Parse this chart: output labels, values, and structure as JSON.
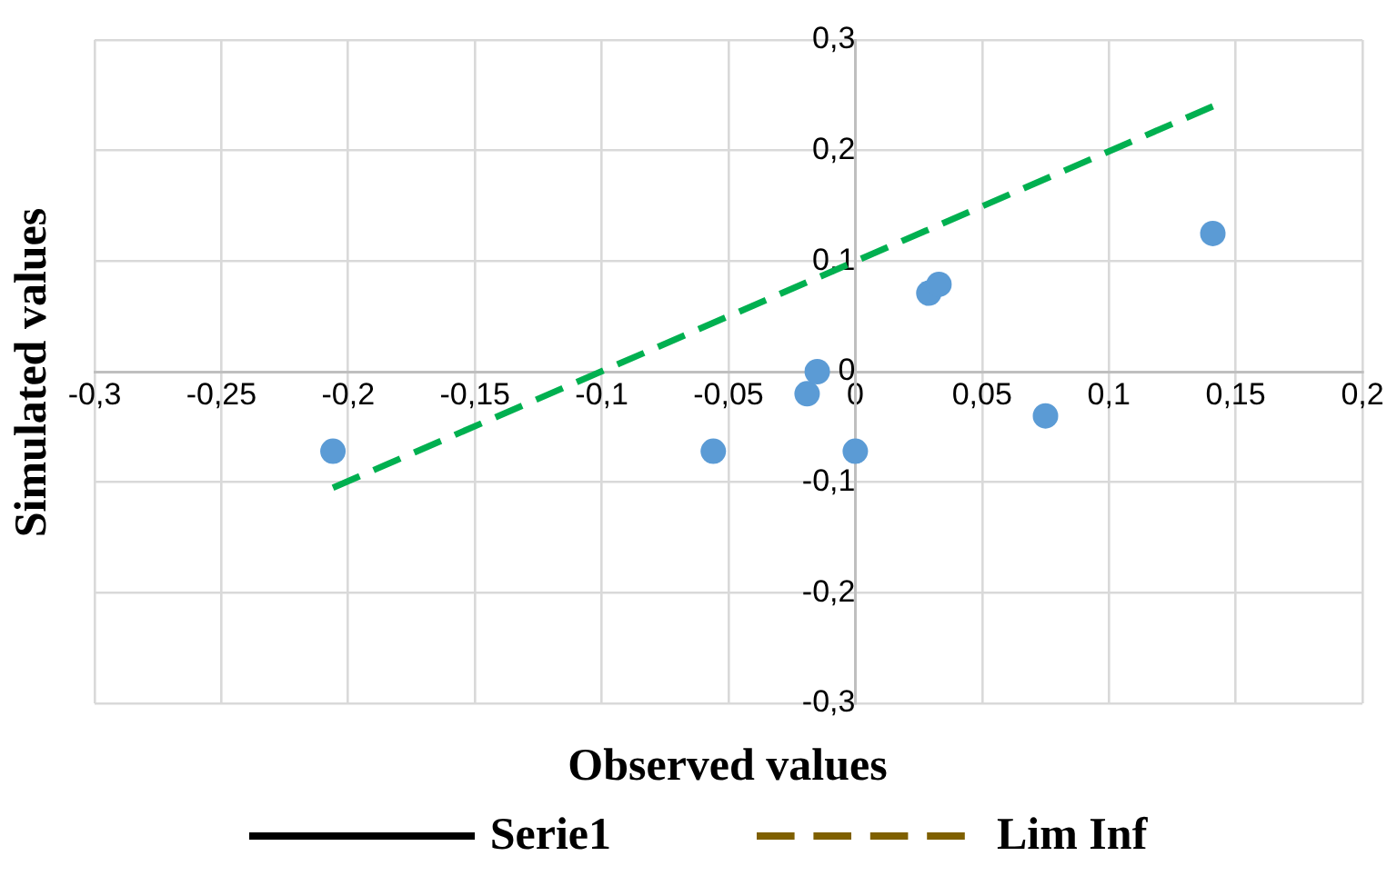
{
  "chart_data": {
    "type": "scatter",
    "xlabel": "Observed values",
    "ylabel": "Simulated values",
    "xlim": [
      -0.3,
      0.2
    ],
    "ylim": [
      -0.3,
      0.3
    ],
    "xticks": [
      {
        "value": -0.3,
        "label": "-0,3"
      },
      {
        "value": -0.25,
        "label": "-0,25"
      },
      {
        "value": -0.2,
        "label": "-0,2"
      },
      {
        "value": -0.15,
        "label": "-0,15"
      },
      {
        "value": -0.1,
        "label": "-0,1"
      },
      {
        "value": -0.05,
        "label": "-0,05"
      },
      0,
      {
        "value": 0.05,
        "label": "0,05"
      },
      {
        "value": 0.1,
        "label": "0,1"
      },
      {
        "value": 0.15,
        "label": "0,15"
      },
      {
        "value": 0.2,
        "label": "0,2"
      }
    ],
    "yticks": [
      {
        "value": -0.3,
        "label": "-0,3"
      },
      {
        "value": -0.2,
        "label": "-0,2"
      },
      {
        "value": -0.1,
        "label": "-0,1"
      },
      0,
      {
        "value": 0.1,
        "label": "0,1"
      },
      {
        "value": 0.2,
        "label": "0,2"
      },
      {
        "value": 0.3,
        "label": "0,3"
      }
    ],
    "grid": true,
    "legend": "bottom",
    "series": [
      {
        "color": "#5b9bd5",
        "marker": "circle",
        "x": [
          -0.206,
          -0.056,
          -0.019,
          -0.015,
          0,
          0.029,
          0.033,
          0.075,
          0.141
        ],
        "values": [
          -0.072,
          -0.072,
          -0.02,
          0,
          -0.072,
          0.071,
          0.079,
          -0.04,
          0.125
        ]
      },
      {
        "type": "line",
        "color": "#00b050",
        "line_style": "dashed",
        "x": [
          -0.206,
          0.141
        ],
        "values": [
          -0.105,
          0.24
        ]
      },
      {
        "type": "line",
        "name": "Serie1",
        "color": "#000000",
        "line_style": "solid"
      },
      {
        "type": "line",
        "name": "Lim Inf",
        "color": "#7f6000",
        "line_style": "dashed"
      }
    ]
  }
}
